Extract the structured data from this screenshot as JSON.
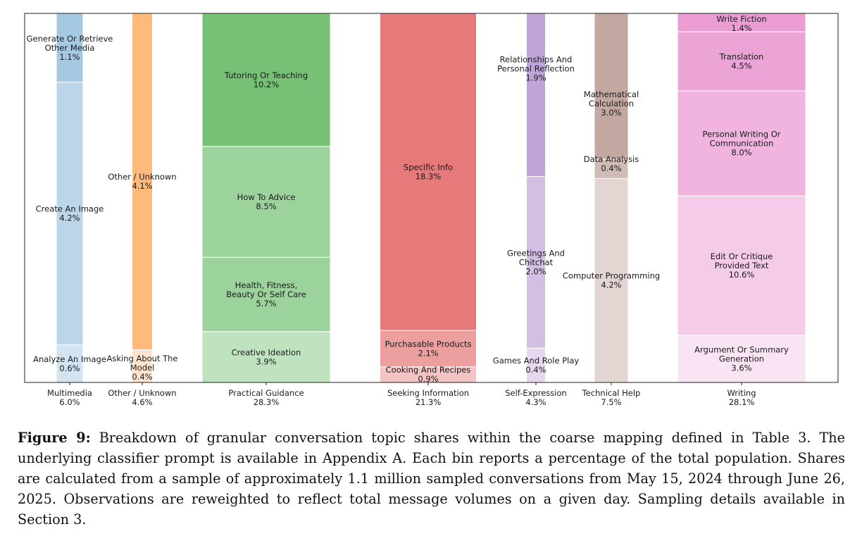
{
  "chart_data": {
    "type": "mosaic",
    "title": "",
    "xlabel": "",
    "ylabel": "",
    "categories": [
      {
        "name": "Multimedia",
        "share": "6.0%",
        "value": 6.0,
        "color": "#1f77b4",
        "segments": [
          {
            "label": "Analyze An Image",
            "pct": "0.6%",
            "value": 0.6,
            "alpha": 0.2
          },
          {
            "label": "Create An Image",
            "pct": "4.2%",
            "value": 4.2,
            "alpha": 0.3
          },
          {
            "label": "Generate Or Retrieve Other Media",
            "pct": "1.1%",
            "value": 1.1,
            "alpha": 0.4
          }
        ]
      },
      {
        "name": "Other / Unknown",
        "share": "4.6%",
        "value": 4.6,
        "color": "#ff7f0e",
        "segments": [
          {
            "label": "Asking About The Model",
            "pct": "0.4%",
            "value": 0.4,
            "alpha": 0.2
          },
          {
            "label": "Other / Unknown",
            "pct": "4.1%",
            "value": 4.1,
            "alpha": 0.55
          }
        ]
      },
      {
        "name": "Practical Guidance",
        "share": "28.3%",
        "value": 28.3,
        "color": "#2ca02c",
        "segments": [
          {
            "label": "Creative Ideation",
            "pct": "3.9%",
            "value": 3.9,
            "alpha": 0.3
          },
          {
            "label": "Health, Fitness, Beauty Or Self Care",
            "pct": "5.7%",
            "value": 5.7,
            "alpha": 0.47
          },
          {
            "label": "How To Advice",
            "pct": "8.5%",
            "value": 8.5,
            "alpha": 0.47
          },
          {
            "label": "Tutoring Or Teaching",
            "pct": "10.2%",
            "value": 10.2,
            "alpha": 0.65
          }
        ]
      },
      {
        "name": "Seeking Information",
        "share": "21.3%",
        "value": 21.3,
        "color": "#d62728",
        "segments": [
          {
            "label": "Cooking And Recipes",
            "pct": "0.9%",
            "value": 0.9,
            "alpha": 0.28
          },
          {
            "label": "Purchasable Products",
            "pct": "2.1%",
            "value": 2.1,
            "alpha": 0.45
          },
          {
            "label": "Specific Info",
            "pct": "18.3%",
            "value": 18.3,
            "alpha": 0.62
          }
        ]
      },
      {
        "name": "Self-Expression",
        "share": "4.3%",
        "value": 4.3,
        "color": "#9467bd",
        "segments": [
          {
            "label": "Games And Role Play",
            "pct": "0.4%",
            "value": 0.4,
            "alpha": 0.25
          },
          {
            "label": "Greetings And Chitchat",
            "pct": "2.0%",
            "value": 2.0,
            "alpha": 0.42
          },
          {
            "label": "Relationships And Personal Reflection",
            "pct": "1.9%",
            "value": 1.9,
            "alpha": 0.6
          }
        ]
      },
      {
        "name": "Technical Help",
        "share": "7.5%",
        "value": 7.5,
        "color": "#8c564b",
        "segments": [
          {
            "label": "Computer Programming",
            "pct": "4.2%",
            "value": 4.2,
            "alpha": 0.25
          },
          {
            "label": "Data Analysis",
            "pct": "0.4%",
            "value": 0.4,
            "alpha": 0.4
          },
          {
            "label": "Mathematical Calculation",
            "pct": "3.0%",
            "value": 3.0,
            "alpha": 0.52
          }
        ]
      },
      {
        "name": "Writing",
        "share": "28.1%",
        "value": 28.1,
        "color": "#e377c2",
        "segments": [
          {
            "label": "Argument Or Summary Generation",
            "pct": "3.6%",
            "value": 3.6,
            "alpha": 0.2
          },
          {
            "label": "Edit Or Critique Provided Text",
            "pct": "10.6%",
            "value": 10.6,
            "alpha": 0.38
          },
          {
            "label": "Personal Writing Or Communication",
            "pct": "8.0%",
            "value": 8.0,
            "alpha": 0.55
          },
          {
            "label": "Translation",
            "pct": "4.5%",
            "value": 4.5,
            "alpha": 0.68
          },
          {
            "label": "Write Fiction",
            "pct": "1.4%",
            "value": 1.4,
            "alpha": 0.72
          }
        ]
      }
    ]
  },
  "caption": {
    "label": "Figure 9:",
    "text": "Breakdown of granular conversation topic shares within the coarse mapping defined in Table 3. The underlying classifier prompt is available in Appendix A. Each bin reports a percentage of the total population. Shares are calculated from a sample of approximately 1.1 million sampled conversations from May 15, 2024 through June 26, 2025. Observations are reweighted to reflect total message volumes on a given day. Sampling details available in Section 3."
  }
}
